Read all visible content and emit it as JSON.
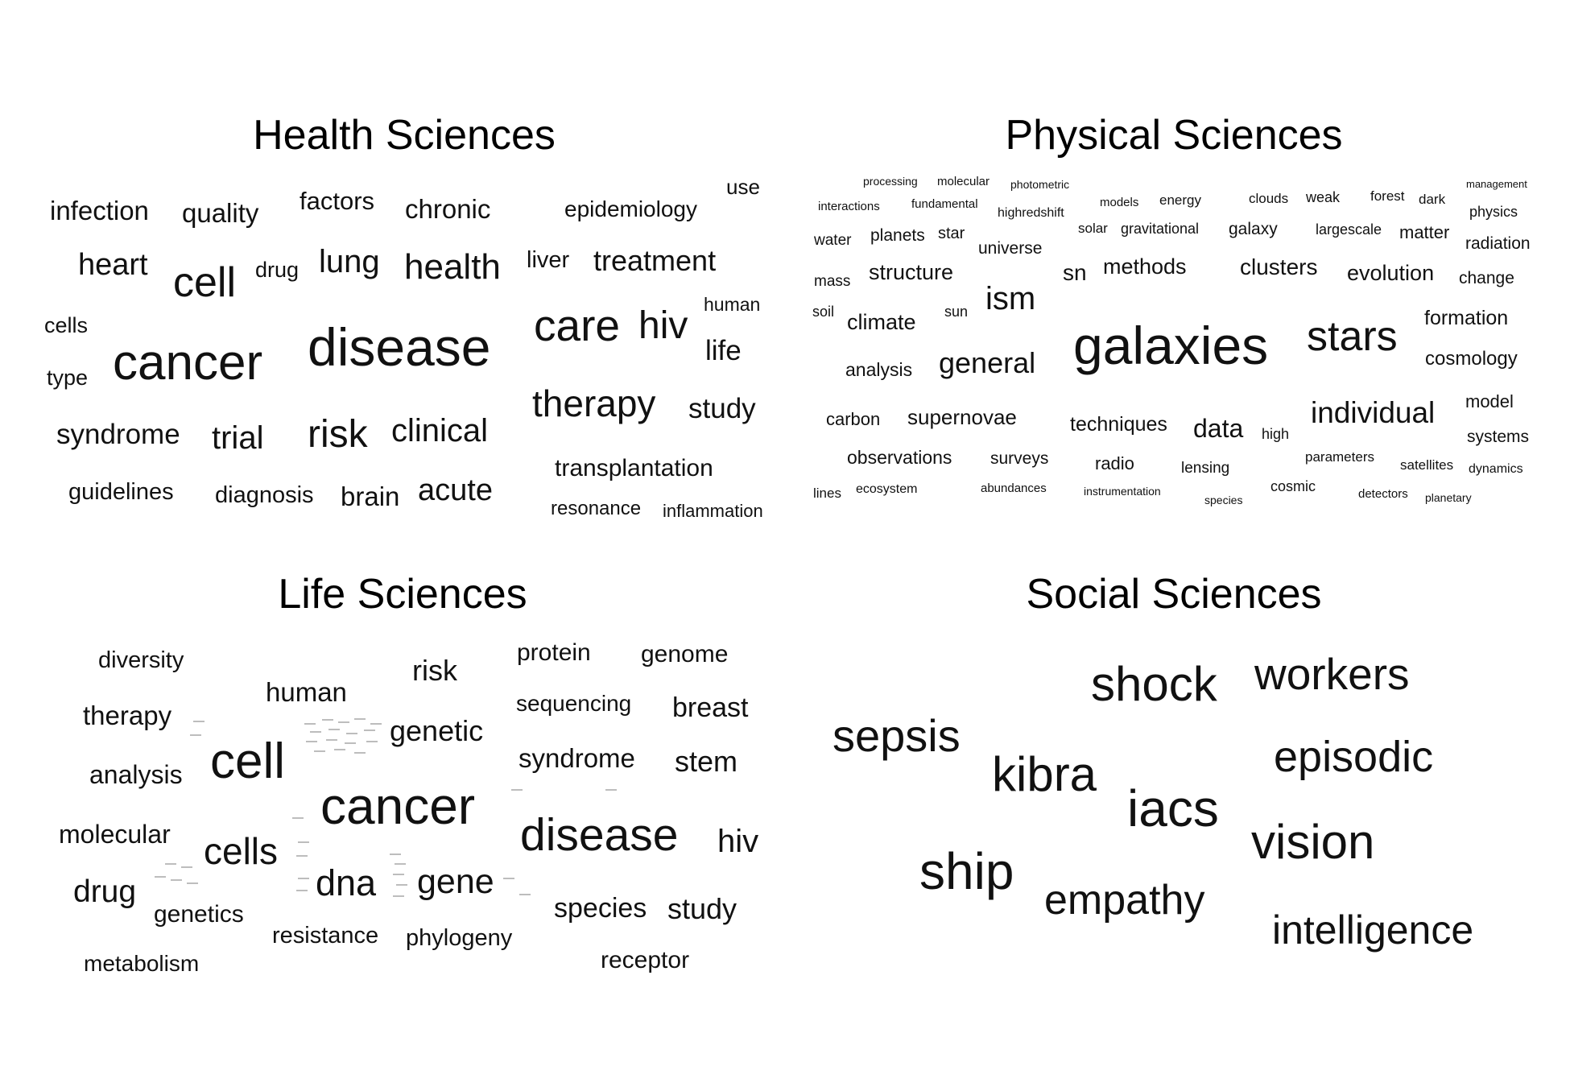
{
  "panels": [
    {
      "title": "Health Sciences",
      "words": [
        "infection",
        "quality",
        "factors",
        "chronic",
        "epidemiology",
        "use",
        "heart",
        "cell",
        "drug",
        "lung",
        "health",
        "liver",
        "treatment",
        "human",
        "cells",
        "disease",
        "care",
        "hiv",
        "life",
        "type",
        "cancer",
        "therapy",
        "study",
        "syndrome",
        "trial",
        "risk",
        "clinical",
        "transplantation",
        "guidelines",
        "diagnosis",
        "brain",
        "acute",
        "resonance",
        "inflammation"
      ]
    },
    {
      "title": "Physical Sciences",
      "words": [
        "processing",
        "molecular",
        "photometric",
        "management",
        "interactions",
        "fundamental",
        "models",
        "energy",
        "clouds",
        "weak",
        "forest",
        "dark",
        "physics",
        "highredshift",
        "water",
        "planets",
        "star",
        "solar",
        "gravitational",
        "galaxy",
        "largescale",
        "matter",
        "radiation",
        "universe",
        "mass",
        "structure",
        "sn",
        "methods",
        "clusters",
        "evolution",
        "change",
        "soil",
        "ism",
        "climate",
        "sun",
        "formation",
        "galaxies",
        "stars",
        "cosmology",
        "analysis",
        "general",
        "model",
        "carbon",
        "supernovae",
        "individual",
        "techniques",
        "data",
        "systems",
        "high",
        "observations",
        "surveys",
        "parameters",
        "radio",
        "satellites",
        "lensing",
        "dynamics",
        "lines",
        "ecosystem",
        "abundances",
        "instrumentation",
        "cosmic",
        "detectors",
        "species",
        "planetary"
      ]
    },
    {
      "title": "Life Sciences",
      "words": [
        "diversity",
        "protein",
        "genome",
        "risk",
        "human",
        "sequencing",
        "breast",
        "therapy",
        "genetic",
        "cell",
        "syndrome",
        "stem",
        "analysis",
        "cancer",
        "molecular",
        "disease",
        "hiv",
        "cells",
        "dna",
        "gene",
        "drug",
        "genetics",
        "species",
        "study",
        "resistance",
        "phylogeny",
        "metabolism",
        "receptor"
      ]
    },
    {
      "title": "Social Sciences",
      "words": [
        "shock",
        "workers",
        "sepsis",
        "kibra",
        "episodic",
        "iacs",
        "vision",
        "ship",
        "empathy",
        "intelligence"
      ]
    }
  ]
}
